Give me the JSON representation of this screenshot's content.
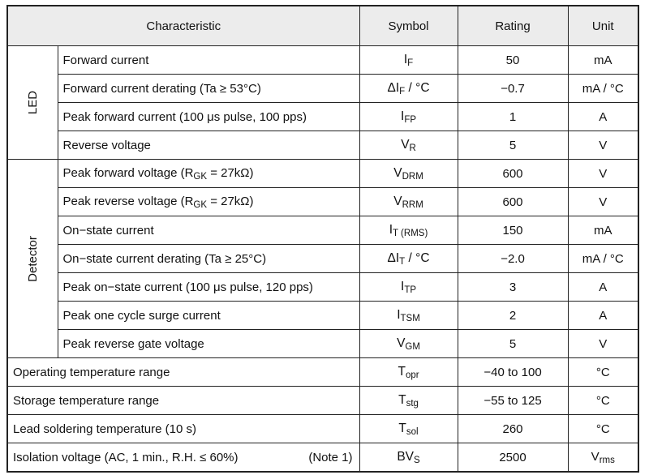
{
  "headers": {
    "characteristic": "Characteristic",
    "symbol": "Symbol",
    "rating": "Rating",
    "unit": "Unit"
  },
  "groups": {
    "led": "LED",
    "detector": "Detector"
  },
  "led_rows": [
    {
      "characteristic": "Forward current",
      "symbol_main": "I",
      "symbol_sub": "F",
      "rating": "50",
      "unit": "mA"
    },
    {
      "characteristic": "Forward current derating (Ta ≥ 53°C)",
      "symbol_main": "ΔI",
      "symbol_sub": "F",
      "symbol_tail": " / °C",
      "rating": "−0.7",
      "unit": "mA / °C"
    },
    {
      "characteristic": "Peak forward current (100 μs pulse, 100 pps)",
      "symbol_main": "I",
      "symbol_sub": "FP",
      "rating": "1",
      "unit": "A"
    },
    {
      "characteristic": "Reverse voltage",
      "symbol_main": "V",
      "symbol_sub": "R",
      "rating": "5",
      "unit": "V"
    }
  ],
  "detector_rows": [
    {
      "characteristic_pre": "Peak forward voltage (R",
      "characteristic_sub": "GK",
      "characteristic_post": " = 27kΩ)",
      "symbol_main": "V",
      "symbol_sub": "DRM",
      "rating": "600",
      "unit": "V"
    },
    {
      "characteristic_pre": "Peak reverse voltage (R",
      "characteristic_sub": "GK",
      "characteristic_post": " = 27kΩ)",
      "symbol_main": "V",
      "symbol_sub": "RRM",
      "rating": "600",
      "unit": "V"
    },
    {
      "characteristic": "On−state current",
      "symbol_main": "I",
      "symbol_sub": "T (RMS)",
      "rating": "150",
      "unit": "mA"
    },
    {
      "characteristic": "On−state current derating (Ta ≥ 25°C)",
      "symbol_main": "ΔI",
      "symbol_sub": "T",
      "symbol_tail": " / °C",
      "rating": "−2.0",
      "unit": "mA / °C"
    },
    {
      "characteristic": "Peak on−state current (100 μs pulse, 120 pps)",
      "symbol_main": "I",
      "symbol_sub": "TP",
      "rating": "3",
      "unit": "A"
    },
    {
      "characteristic": "Peak one cycle surge current",
      "symbol_main": "I",
      "symbol_sub": "TSM",
      "rating": "2",
      "unit": "A"
    },
    {
      "characteristic": "Peak reverse gate voltage",
      "symbol_main": "V",
      "symbol_sub": "GM",
      "rating": "5",
      "unit": "V"
    }
  ],
  "general_rows": [
    {
      "characteristic": "Operating temperature range",
      "symbol_main": "T",
      "symbol_sub": "opr",
      "rating": "−40 to 100",
      "unit": "°C"
    },
    {
      "characteristic": "Storage temperature range",
      "symbol_main": "T",
      "symbol_sub": "stg",
      "rating": "−55 to 125",
      "unit": "°C"
    },
    {
      "characteristic": "Lead soldering temperature (10 s)",
      "symbol_main": "T",
      "symbol_sub": "sol",
      "rating": "260",
      "unit": "°C"
    },
    {
      "characteristic": "Isolation voltage (AC, 1 min., R.H. ≤ 60%)",
      "note": "(Note 1)",
      "symbol_main": "BV",
      "symbol_sub": "S",
      "rating": "2500",
      "unit_main": "V",
      "unit_sub": "rms"
    }
  ]
}
